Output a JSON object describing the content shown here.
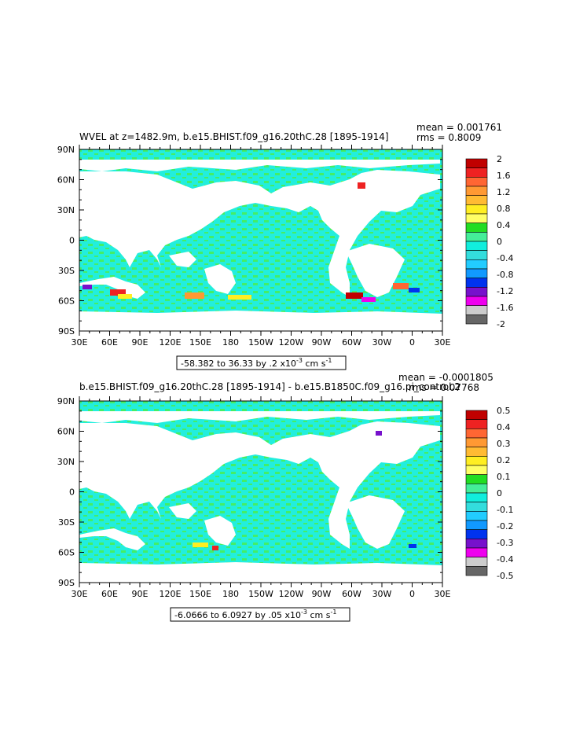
{
  "panels": [
    {
      "title": "WVEL at z=1482.9m, b.e15.BHIST.f09_g16.20thC.28 [1895-1914]",
      "mean_text": "mean = 0.001761",
      "rms_text": "rms = 0.8009",
      "range_text": "-58.382 to 36.33 by .2 x10",
      "range_exp": "-3",
      "range_units": " cm s",
      "range_units_exp": "-1",
      "lat_labels": [
        "90N",
        "60N",
        "30N",
        "0",
        "30S",
        "60S",
        "90S"
      ],
      "lon_labels": [
        "30E",
        "60E",
        "90E",
        "120E",
        "150E",
        "180",
        "150W",
        "120W",
        "90W",
        "60W",
        "30W",
        "0",
        "30E"
      ],
      "colorbar_labels": [
        "2",
        "1.6",
        "1.2",
        "0.8",
        "0.4",
        "0",
        "-0.4",
        "-0.8",
        "-1.2",
        "-1.6",
        "-2"
      ]
    },
    {
      "title": "b.e15.BHIST.f09_g16.20thC.28 [1895-1914] - b.e15.B1850C.f09_g16.pi_control.2",
      "mean_text": "mean = -0.0001805",
      "rms_text": "rms = 0.07768",
      "range_text": "-6.0666 to 6.0927 by .05 x10",
      "range_exp": "-3",
      "range_units": " cm s",
      "range_units_exp": "-1",
      "lat_labels": [
        "90N",
        "60N",
        "30N",
        "0",
        "30S",
        "60S",
        "90S"
      ],
      "lon_labels": [
        "30E",
        "60E",
        "90E",
        "120E",
        "150E",
        "180",
        "150W",
        "120W",
        "90W",
        "60W",
        "30W",
        "0",
        "30E"
      ],
      "colorbar_labels": [
        "0.5",
        "0.4",
        "0.3",
        "0.2",
        "0.1",
        "0",
        "-0.1",
        "-0.2",
        "-0.3",
        "-0.4",
        "-0.5"
      ]
    }
  ],
  "colorbar_colors": [
    "#c00000",
    "#ee2222",
    "#ff6633",
    "#ff9933",
    "#ffbb33",
    "#ffee22",
    "#ffff66",
    "#22dd22",
    "#44ee99",
    "#11eedd",
    "#33dddd",
    "#22ccff",
    "#1199ff",
    "#0033ee",
    "#7711cc",
    "#ee00ee",
    "#cccccc",
    "#666666"
  ],
  "colors": {
    "ocean": "#22eedd",
    "ocean_alt": "#33ff88",
    "land": "#ffffff",
    "frame": "#000000"
  }
}
